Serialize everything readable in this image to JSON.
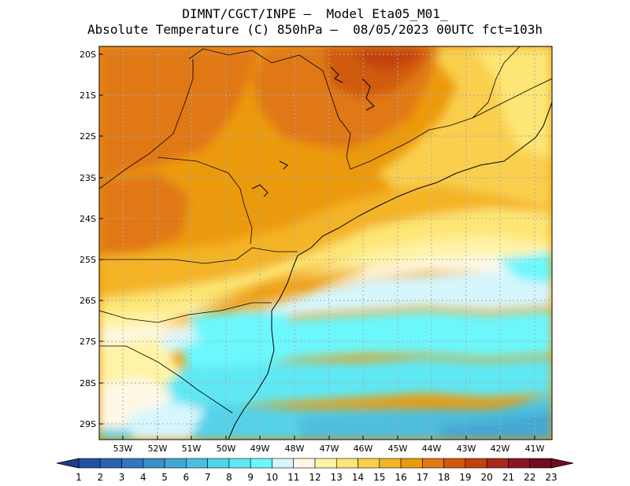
{
  "header": {
    "line1": "DIMNT/CGCT/INPE —  Model Eta05_M01_",
    "line2": "Absolute Temperature (C) 850hPa —  08/05/2023 00UTC fct=103h"
  },
  "map": {
    "lat_labels": [
      "20S",
      "21S",
      "22S",
      "23S",
      "24S",
      "25S",
      "26S",
      "27S",
      "28S",
      "29S"
    ],
    "lon_labels": [
      "53W",
      "52W",
      "51W",
      "50W",
      "49W",
      "48W",
      "47W",
      "46W",
      "45W",
      "44W",
      "43W",
      "42W",
      "41W"
    ],
    "lat_range": [
      -29.4,
      -19.8
    ],
    "lon_range": [
      -53.5,
      -40.6
    ]
  },
  "colorbar": {
    "labels": [
      "1",
      "2",
      "3",
      "4",
      "5",
      "6",
      "7",
      "8",
      "9",
      "10",
      "11",
      "12",
      "13",
      "14",
      "15",
      "16",
      "17",
      "18",
      "19",
      "20",
      "21",
      "22",
      "23"
    ],
    "colors": [
      "#1f3d8c",
      "#23509d",
      "#2a63ae",
      "#3178bc",
      "#3a8fc9",
      "#43a7d5",
      "#4bbfdf",
      "#52d3ea",
      "#5ee8f4",
      "#6cf7fd",
      "#d6f6fd",
      "#fff8e6",
      "#fff3a6",
      "#fde675",
      "#f9cf4e",
      "#f4b425",
      "#ec9a0d",
      "#e07814",
      "#d05a0c",
      "#c2420e",
      "#a8291c",
      "#8c1622",
      "#6e0e1e"
    ]
  }
}
